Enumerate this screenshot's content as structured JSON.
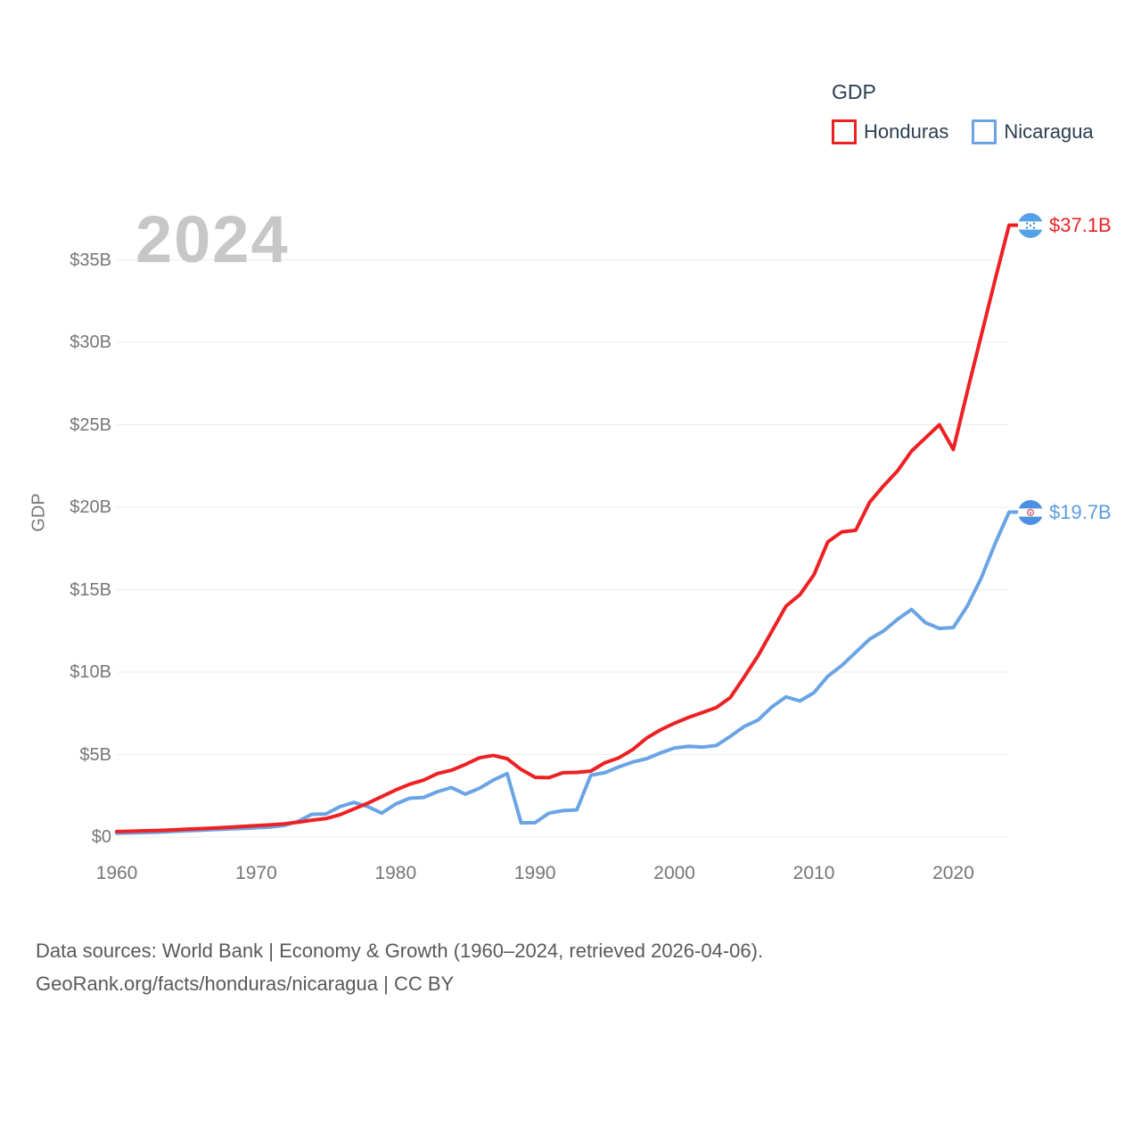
{
  "legend": {
    "title": "GDP",
    "items": [
      {
        "label": "Honduras",
        "color": "#ed2124"
      },
      {
        "label": "Nicaragua",
        "color": "#6aa4e4"
      }
    ]
  },
  "watermark": "2024",
  "y_axis": {
    "label": "GDP",
    "ticks": [
      {
        "value": 0,
        "label": "$0"
      },
      {
        "value": 5,
        "label": "$5B"
      },
      {
        "value": 10,
        "label": "$10B"
      },
      {
        "value": 15,
        "label": "$15B"
      },
      {
        "value": 20,
        "label": "$20B"
      },
      {
        "value": 25,
        "label": "$25B"
      },
      {
        "value": 30,
        "label": "$30B"
      },
      {
        "value": 35,
        "label": "$35B"
      }
    ]
  },
  "x_axis": {
    "ticks": [
      1960,
      1970,
      1980,
      1990,
      2000,
      2010,
      2020
    ]
  },
  "end_labels": [
    {
      "series": "Honduras",
      "label": "$37.1B",
      "flag": "honduras"
    },
    {
      "series": "Nicaragua",
      "label": "$19.7B",
      "flag": "nicaragua"
    }
  ],
  "footer": {
    "line1": "Data sources: World Bank | Economy & Growth (1960–2024, retrieved 2026-04-06).",
    "line2": "GeoRank.org/facts/honduras/nicaragua | CC BY"
  },
  "chart_data": {
    "type": "line",
    "title": "GDP",
    "ylabel": "GDP",
    "xlim": [
      1960,
      2024
    ],
    "ylim": [
      0,
      37.8
    ],
    "grid": true,
    "legend_position": "top-right",
    "x": [
      1960,
      1961,
      1962,
      1963,
      1964,
      1965,
      1966,
      1967,
      1968,
      1969,
      1970,
      1971,
      1972,
      1973,
      1974,
      1975,
      1976,
      1977,
      1978,
      1979,
      1980,
      1981,
      1982,
      1983,
      1984,
      1985,
      1986,
      1987,
      1988,
      1989,
      1990,
      1991,
      1992,
      1993,
      1994,
      1995,
      1996,
      1997,
      1998,
      1999,
      2000,
      2001,
      2002,
      2003,
      2004,
      2005,
      2006,
      2007,
      2008,
      2009,
      2010,
      2011,
      2012,
      2013,
      2014,
      2015,
      2016,
      2017,
      2018,
      2019,
      2020,
      2021,
      2022,
      2023,
      2024
    ],
    "series": [
      {
        "name": "Honduras",
        "color": "#ed2124",
        "unit": "billion USD",
        "end_value_label": "$37.1B",
        "values": [
          0.33,
          0.35,
          0.38,
          0.4,
          0.43,
          0.47,
          0.51,
          0.55,
          0.59,
          0.64,
          0.69,
          0.74,
          0.8,
          0.9,
          1.02,
          1.12,
          1.35,
          1.7,
          2.05,
          2.45,
          2.85,
          3.2,
          3.45,
          3.85,
          4.05,
          4.4,
          4.8,
          4.95,
          4.75,
          4.1,
          3.62,
          3.6,
          3.9,
          3.92,
          4.0,
          4.5,
          4.8,
          5.3,
          6.0,
          6.5,
          6.9,
          7.25,
          7.55,
          7.85,
          8.45,
          9.7,
          11.0,
          12.5,
          14.0,
          14.7,
          15.9,
          17.9,
          18.5,
          18.6,
          20.3,
          21.3,
          22.2,
          23.4,
          24.2,
          25.0,
          23.5,
          27.0,
          30.4,
          33.8,
          37.1
        ]
      },
      {
        "name": "Nicaragua",
        "color": "#6aa4e4",
        "unit": "billion USD",
        "end_value_label": "$19.7B",
        "values": [
          0.23,
          0.25,
          0.27,
          0.3,
          0.34,
          0.38,
          0.41,
          0.45,
          0.49,
          0.52,
          0.56,
          0.61,
          0.7,
          0.95,
          1.38,
          1.4,
          1.84,
          2.1,
          1.85,
          1.45,
          2.0,
          2.35,
          2.4,
          2.75,
          3.0,
          2.6,
          2.95,
          3.45,
          3.85,
          0.86,
          0.87,
          1.45,
          1.6,
          1.65,
          3.75,
          3.9,
          4.25,
          4.55,
          4.75,
          5.1,
          5.4,
          5.5,
          5.45,
          5.55,
          6.1,
          6.7,
          7.1,
          7.9,
          8.5,
          8.25,
          8.75,
          9.75,
          10.4,
          11.2,
          12.0,
          12.5,
          13.2,
          13.8,
          13.0,
          12.65,
          12.7,
          14.0,
          15.7,
          17.8,
          19.7
        ]
      }
    ]
  }
}
